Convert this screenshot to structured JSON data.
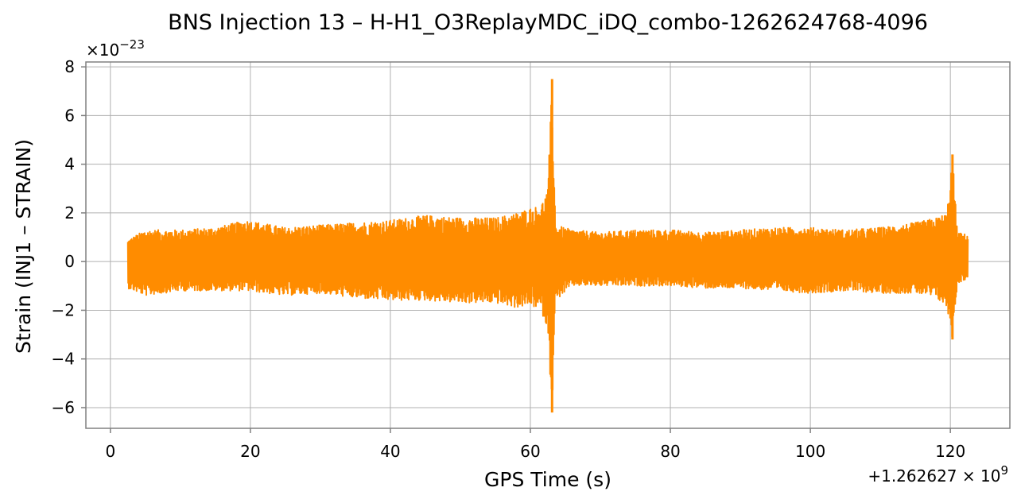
{
  "chart_data": {
    "type": "line",
    "title": "BNS Injection 13 – H-H1_O3ReplayMDC_iDQ_combo-1262624768-4096",
    "xlabel": "GPS Time (s)",
    "ylabel": "Strain (INJ1 – STRAIN)",
    "x_offset_label": "+1.262627 × 10",
    "x_offset_exp": "9",
    "y_multiplier_label": "×10",
    "y_multiplier_exp": "−23",
    "xlim": [
      -3.5,
      128.5
    ],
    "ylim": [
      -6.85,
      8.2
    ],
    "xticks": [
      0,
      20,
      40,
      60,
      80,
      100,
      120
    ],
    "xtick_labels": [
      "0",
      "20",
      "40",
      "60",
      "80",
      "100",
      "120"
    ],
    "yticks": [
      -6,
      -4,
      -2,
      0,
      2,
      4,
      6,
      8
    ],
    "ytick_labels": [
      "−6",
      "−4",
      "−2",
      "0",
      "2",
      "4",
      "6",
      "8"
    ],
    "grid": true,
    "series": [
      {
        "color": "#ff8c00",
        "x_start": 2.5,
        "x_end": 122.5,
        "envelope": [
          {
            "x": 2.5,
            "max": 0.9,
            "min": -1.1
          },
          {
            "x": 5,
            "max": 1.3,
            "min": -1.4
          },
          {
            "x": 10,
            "max": 1.3,
            "min": -1.2
          },
          {
            "x": 15,
            "max": 1.4,
            "min": -1.2
          },
          {
            "x": 19.5,
            "max": 1.7,
            "min": -1.2
          },
          {
            "x": 25,
            "max": 1.4,
            "min": -1.4
          },
          {
            "x": 30,
            "max": 1.5,
            "min": -1.3
          },
          {
            "x": 35,
            "max": 1.6,
            "min": -1.5
          },
          {
            "x": 40,
            "max": 1.7,
            "min": -1.6
          },
          {
            "x": 45,
            "max": 1.9,
            "min": -1.6
          },
          {
            "x": 50,
            "max": 1.8,
            "min": -1.7
          },
          {
            "x": 55,
            "max": 1.8,
            "min": -1.7
          },
          {
            "x": 58,
            "max": 2.0,
            "min": -1.9
          },
          {
            "x": 60,
            "max": 2.2,
            "min": -1.8
          },
          {
            "x": 61.5,
            "max": 2.3,
            "min": -2.0
          },
          {
            "x": 62.5,
            "max": 3.0,
            "min": -2.8
          },
          {
            "x": 63.1,
            "max": 7.5,
            "min": -6.2
          },
          {
            "x": 63.6,
            "max": 1.5,
            "min": -1.6
          },
          {
            "x": 66,
            "max": 1.3,
            "min": -1.0
          },
          {
            "x": 70,
            "max": 1.2,
            "min": -1.0
          },
          {
            "x": 75,
            "max": 1.3,
            "min": -1.0
          },
          {
            "x": 80,
            "max": 1.3,
            "min": -1.0
          },
          {
            "x": 85,
            "max": 1.2,
            "min": -1.1
          },
          {
            "x": 90,
            "max": 1.3,
            "min": -1.1
          },
          {
            "x": 95,
            "max": 1.4,
            "min": -1.2
          },
          {
            "x": 100,
            "max": 1.4,
            "min": -1.3
          },
          {
            "x": 105,
            "max": 1.3,
            "min": -1.2
          },
          {
            "x": 110,
            "max": 1.4,
            "min": -1.3
          },
          {
            "x": 115,
            "max": 1.6,
            "min": -1.3
          },
          {
            "x": 118,
            "max": 1.8,
            "min": -1.5
          },
          {
            "x": 119.5,
            "max": 2.0,
            "min": -1.9
          },
          {
            "x": 120.3,
            "max": 4.4,
            "min": -3.2
          },
          {
            "x": 121,
            "max": 1.2,
            "min": -0.9
          },
          {
            "x": 122.5,
            "max": 1.1,
            "min": -0.7
          }
        ]
      }
    ]
  }
}
